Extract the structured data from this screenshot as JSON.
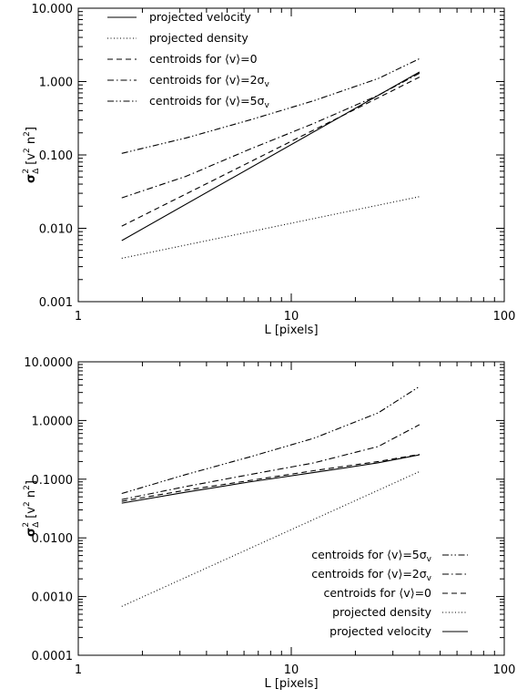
{
  "chart_data": [
    {
      "type": "line",
      "xscale": "log",
      "yscale": "log",
      "xlim": [
        1,
        100
      ],
      "ylim": [
        0.001,
        10
      ],
      "xticks": [
        "1",
        "10",
        "100"
      ],
      "yticks": [
        "0.001",
        "0.010",
        "0.100",
        "1.000",
        "10.000"
      ],
      "xlabel_main": "L [pixels]",
      "ylabel": {
        "sym": "σ",
        "sub": "Δ",
        "sup": "2",
        "open": " [v",
        "sup2": "2",
        "mid": " n",
        "sup3": "2",
        "close": "]"
      },
      "legend_position": "top-left",
      "series": [
        {
          "legend": {
            "text": "projected velocity"
          },
          "style": "solid",
          "x": [
            1.6,
            40
          ],
          "y": [
            0.0068,
            1.35
          ]
        },
        {
          "legend": {
            "text": "projected density"
          },
          "style": "dotted",
          "x": [
            1.6,
            40
          ],
          "y": [
            0.0039,
            0.027
          ]
        },
        {
          "legend": {
            "text": "centroids for ⟨v⟩=0"
          },
          "style": "dashed",
          "x": [
            1.6,
            40
          ],
          "y": [
            0.0107,
            1.15
          ]
        },
        {
          "legend": {
            "text": "centroids for ⟨v⟩=2σ",
            "sub": "v"
          },
          "style": "dashdot",
          "x": [
            1.6,
            3.2,
            6.4,
            12.8,
            25.6,
            40
          ],
          "y": [
            0.026,
            0.051,
            0.12,
            0.27,
            0.65,
            1.3
          ]
        },
        {
          "legend": {
            "text": "centroids for ⟨v⟩=5σ",
            "sub": "v"
          },
          "style": "dashdotdot",
          "x": [
            1.6,
            3.2,
            6.4,
            12.8,
            25.6,
            40
          ],
          "y": [
            0.105,
            0.17,
            0.3,
            0.55,
            1.1,
            2.05
          ]
        }
      ]
    },
    {
      "type": "line",
      "xscale": "log",
      "yscale": "log",
      "xlim": [
        1,
        100
      ],
      "ylim": [
        0.0001,
        10
      ],
      "xticks": [
        "1",
        "10",
        "100"
      ],
      "yticks": [
        "0.0001",
        "0.0010",
        "0.0100",
        "0.1000",
        "1.0000",
        "10.0000"
      ],
      "xlabel_main": "L [pixels]",
      "ylabel": {
        "sym": "σ",
        "sub": "Δ",
        "sup": "2",
        "open": " [v",
        "sup2": "2",
        "mid": " n",
        "sup3": "2",
        "close": "]"
      },
      "legend_position": "bottom-right",
      "series": [
        {
          "legend": {
            "text": "centroids for ⟨v⟩=5σ",
            "sub": "v"
          },
          "style": "dashdotdot",
          "x": [
            1.6,
            3.2,
            6.4,
            12.8,
            25.6,
            40
          ],
          "y": [
            0.057,
            0.12,
            0.24,
            0.5,
            1.35,
            3.8
          ]
        },
        {
          "legend": {
            "text": "centroids for ⟨v⟩=2σ",
            "sub": "v"
          },
          "style": "dashdot",
          "x": [
            1.6,
            3.2,
            6.4,
            12.8,
            25.6,
            40
          ],
          "y": [
            0.045,
            0.075,
            0.12,
            0.19,
            0.36,
            0.85
          ]
        },
        {
          "legend": {
            "text": "centroids for ⟨v⟩=0"
          },
          "style": "dashed",
          "x": [
            1.6,
            3.2,
            6.4,
            12.8,
            25.6,
            40
          ],
          "y": [
            0.042,
            0.065,
            0.095,
            0.14,
            0.2,
            0.265
          ]
        },
        {
          "legend": {
            "text": "projected density"
          },
          "style": "dotted",
          "x": [
            1.6,
            40
          ],
          "y": [
            0.00068,
            0.135
          ]
        },
        {
          "legend": {
            "text": "projected velocity"
          },
          "style": "solid",
          "x": [
            1.6,
            3.2,
            6.4,
            12.8,
            25.6,
            40
          ],
          "y": [
            0.039,
            0.06,
            0.09,
            0.13,
            0.19,
            0.26
          ]
        }
      ]
    }
  ]
}
